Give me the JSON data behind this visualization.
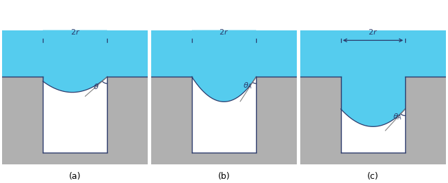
{
  "fig_width": 6.49,
  "fig_height": 2.65,
  "dpi": 100,
  "bg_color": "#ffffff",
  "liquid_color": "#55CCEE",
  "gray_color": "#B0B0B0",
  "outline_color": "#2B3A6B",
  "panel_labels": [
    "(a)",
    "(b)",
    "(c)"
  ],
  "dim_label": "2r",
  "angle_a": "θ",
  "angle_bc": "θ_A"
}
